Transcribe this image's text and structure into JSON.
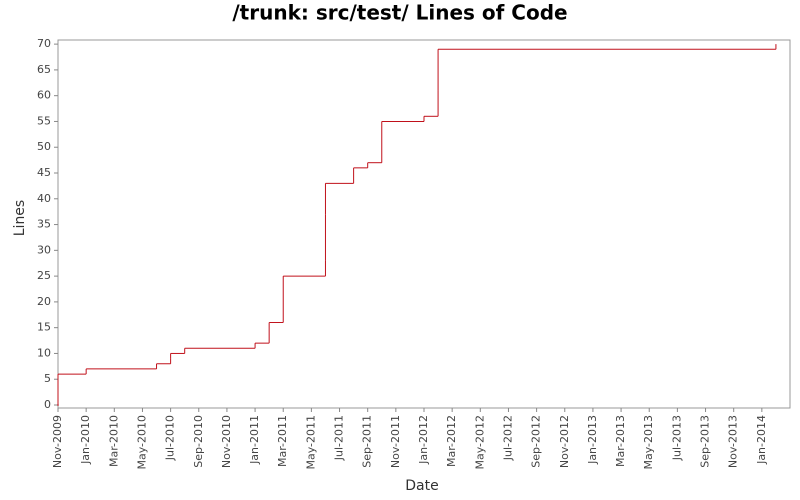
{
  "chart_data": {
    "type": "step",
    "title": "/trunk: src/test/ Lines of Code",
    "x_label": "Date",
    "y_label": "Lines",
    "x": [
      "2009-11",
      "2009-11",
      "2010-01",
      "2010-06",
      "2010-07",
      "2010-07",
      "2010-08",
      "2011-01",
      "2011-02",
      "2011-03",
      "2011-06",
      "2011-06",
      "2011-06",
      "2011-08",
      "2011-09",
      "2011-10",
      "2012-01",
      "2012-02",
      "2012-02",
      "2014-02"
    ],
    "values": [
      0,
      6,
      7,
      8,
      9,
      10,
      11,
      12,
      16,
      25,
      28,
      37,
      43,
      46,
      47,
      55,
      56,
      61,
      69,
      70
    ],
    "color": "#c0101a",
    "xlim": [
      "2009-11",
      "2014-03"
    ],
    "xticks": [
      {
        "value": "2009-11",
        "label": "Nov-2009"
      },
      {
        "value": "2010-01",
        "label": "Jan-2010"
      },
      {
        "value": "2010-03",
        "label": "Mar-2010"
      },
      {
        "value": "2010-05",
        "label": "May-2010"
      },
      {
        "value": "2010-07",
        "label": "Jul-2010"
      },
      {
        "value": "2010-09",
        "label": "Sep-2010"
      },
      {
        "value": "2010-11",
        "label": "Nov-2010"
      },
      {
        "value": "2011-01",
        "label": "Jan-2011"
      },
      {
        "value": "2011-03",
        "label": "Mar-2011"
      },
      {
        "value": "2011-05",
        "label": "May-2011"
      },
      {
        "value": "2011-07",
        "label": "Jul-2011"
      },
      {
        "value": "2011-09",
        "label": "Sep-2011"
      },
      {
        "value": "2011-11",
        "label": "Nov-2011"
      },
      {
        "value": "2012-01",
        "label": "Jan-2012"
      },
      {
        "value": "2012-03",
        "label": "Mar-2012"
      },
      {
        "value": "2012-05",
        "label": "May-2012"
      },
      {
        "value": "2012-07",
        "label": "Jul-2012"
      },
      {
        "value": "2012-09",
        "label": "Sep-2012"
      },
      {
        "value": "2012-11",
        "label": "Nov-2012"
      },
      {
        "value": "2013-01",
        "label": "Jan-2013"
      },
      {
        "value": "2013-03",
        "label": "Mar-2013"
      },
      {
        "value": "2013-05",
        "label": "May-2013"
      },
      {
        "value": "2013-07",
        "label": "Jul-2013"
      },
      {
        "value": "2013-09",
        "label": "Sep-2013"
      },
      {
        "value": "2013-11",
        "label": "Nov-2013"
      },
      {
        "value": "2014-01",
        "label": "Jan-2014"
      }
    ],
    "ylim": [
      0,
      70.8
    ],
    "yticks": [
      0,
      5,
      10,
      15,
      20,
      25,
      30,
      35,
      40,
      45,
      50,
      55,
      60,
      65,
      70
    ],
    "grid": false
  }
}
